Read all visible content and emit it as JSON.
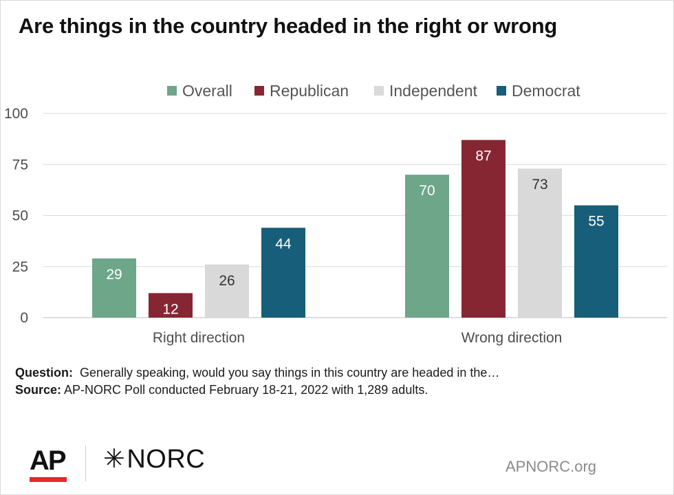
{
  "title": "Are things in the country headed in the right or wrong",
  "chart_data": {
    "type": "bar",
    "categories": [
      "Right direction",
      "Wrong direction"
    ],
    "series": [
      {
        "name": "Overall",
        "color": "#6ea68a",
        "values": [
          29,
          70
        ],
        "label_color": "#ffffff"
      },
      {
        "name": "Republican",
        "color": "#862632",
        "values": [
          12,
          87
        ],
        "label_color": "#ffffff"
      },
      {
        "name": "Independent",
        "color": "#d9d9d9",
        "values": [
          26,
          73
        ],
        "label_color": "#333333"
      },
      {
        "name": "Democrat",
        "color": "#175e7a",
        "values": [
          44,
          55
        ],
        "label_color": "#ffffff"
      }
    ],
    "ylim": [
      0,
      100
    ],
    "yticks": [
      "0",
      "25",
      "50",
      "75",
      "100"
    ],
    "grid": true,
    "legend_position": "top-right"
  },
  "notes": {
    "question_label": "Question:",
    "question_text": "Generally speaking, would you say things in this country are headed in the…",
    "source_label": "Source:",
    "source_text": "AP-NORC Poll conducted February 18-21, 2022 with 1,289 adults."
  },
  "footer": {
    "ap_logo": "AP",
    "norc_star": "✳",
    "norc_logo": "NORC",
    "site": "APNORC.org",
    "ap_accent": "#e8262c"
  }
}
